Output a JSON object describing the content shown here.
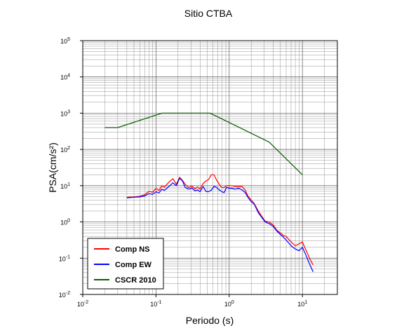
{
  "chart_data": {
    "type": "line",
    "title": "Sitio CTBA",
    "xlabel": "Periodo (s)",
    "ylabel": "PSA(cm/s²)",
    "x_scale": "log",
    "y_scale": "log",
    "xlim": [
      0.01,
      30
    ],
    "ylim": [
      0.01,
      100000
    ],
    "grid": true,
    "legend_position": "bottom-left",
    "x_ticks": [
      {
        "value": 0.01,
        "base": "10",
        "exp": "-2"
      },
      {
        "value": 0.1,
        "base": "10",
        "exp": "-1"
      },
      {
        "value": 1,
        "base": "10",
        "exp": "0"
      },
      {
        "value": 10,
        "base": "10",
        "exp": "1"
      }
    ],
    "y_ticks": [
      {
        "value": 0.01,
        "base": "10",
        "exp": "-2"
      },
      {
        "value": 0.1,
        "base": "10",
        "exp": "-1"
      },
      {
        "value": 1,
        "base": "10",
        "exp": "0"
      },
      {
        "value": 10,
        "base": "10",
        "exp": "1"
      },
      {
        "value": 100,
        "base": "10",
        "exp": "2"
      },
      {
        "value": 1000,
        "base": "10",
        "exp": "3"
      },
      {
        "value": 10000,
        "base": "10",
        "exp": "4"
      },
      {
        "value": 100000,
        "base": "10",
        "exp": "5"
      }
    ],
    "series": [
      {
        "name": "Comp NS",
        "color": "#ff0000",
        "x": [
          0.04,
          0.05,
          0.06,
          0.07,
          0.08,
          0.09,
          0.1,
          0.11,
          0.12,
          0.13,
          0.15,
          0.17,
          0.19,
          0.21,
          0.23,
          0.25,
          0.28,
          0.31,
          0.34,
          0.37,
          0.4,
          0.44,
          0.48,
          0.52,
          0.57,
          0.62,
          0.67,
          0.72,
          0.78,
          0.85,
          0.92,
          1.0,
          1.1,
          1.2,
          1.35,
          1.5,
          1.65,
          1.8,
          2.0,
          2.2,
          2.5,
          2.8,
          3.1,
          3.5,
          4.0,
          4.5,
          5.0,
          5.5,
          6.0,
          7.0,
          8.0,
          9.0,
          10.0,
          11.0,
          12.5,
          14.0
        ],
        "y": [
          4.8,
          4.9,
          5.1,
          5.6,
          7.0,
          6.6,
          8.4,
          7.4,
          10.0,
          9.0,
          12.5,
          15.5,
          11.0,
          17.0,
          14.0,
          11.0,
          8.8,
          9.8,
          8.2,
          9.2,
          8.0,
          11.5,
          13.5,
          14.5,
          20.0,
          20.0,
          14.5,
          11.5,
          9.0,
          8.8,
          10.0,
          10.0,
          10.0,
          9.5,
          9.5,
          9.5,
          7.6,
          5.2,
          4.0,
          3.2,
          2.0,
          1.4,
          1.05,
          1.0,
          0.82,
          0.58,
          0.5,
          0.42,
          0.4,
          0.28,
          0.22,
          0.25,
          0.28,
          0.18,
          0.1,
          0.065
        ]
      },
      {
        "name": "Comp EW",
        "color": "#0000ff",
        "x": [
          0.04,
          0.05,
          0.06,
          0.07,
          0.08,
          0.09,
          0.1,
          0.11,
          0.12,
          0.13,
          0.15,
          0.17,
          0.19,
          0.21,
          0.23,
          0.25,
          0.28,
          0.31,
          0.34,
          0.37,
          0.4,
          0.44,
          0.48,
          0.52,
          0.57,
          0.62,
          0.67,
          0.72,
          0.78,
          0.85,
          0.92,
          1.0,
          1.1,
          1.2,
          1.35,
          1.5,
          1.65,
          1.8,
          2.0,
          2.2,
          2.5,
          2.8,
          3.1,
          3.5,
          4.0,
          4.5,
          5.0,
          5.5,
          6.0,
          7.0,
          8.0,
          9.0,
          10.0,
          11.0,
          12.5,
          14.0
        ],
        "y": [
          4.6,
          4.8,
          4.9,
          5.2,
          6.0,
          5.8,
          6.8,
          6.3,
          8.0,
          7.4,
          9.5,
          12.0,
          10.0,
          16.0,
          13.5,
          9.0,
          8.0,
          8.6,
          7.2,
          7.6,
          6.8,
          9.5,
          7.0,
          6.8,
          7.5,
          9.5,
          9.0,
          7.8,
          7.0,
          6.4,
          9.0,
          8.5,
          8.5,
          8.0,
          8.5,
          7.6,
          6.5,
          4.8,
          3.6,
          3.1,
          1.8,
          1.3,
          1.0,
          0.9,
          0.75,
          0.55,
          0.45,
          0.38,
          0.32,
          0.22,
          0.18,
          0.16,
          0.2,
          0.13,
          0.07,
          0.042
        ]
      },
      {
        "name": "CSCR 2010",
        "color": "#0a5d00",
        "x": [
          0.02,
          0.03,
          0.12,
          0.55,
          3.5,
          10.0
        ],
        "y": [
          400,
          400,
          1000,
          1000,
          160,
          20
        ]
      }
    ]
  }
}
